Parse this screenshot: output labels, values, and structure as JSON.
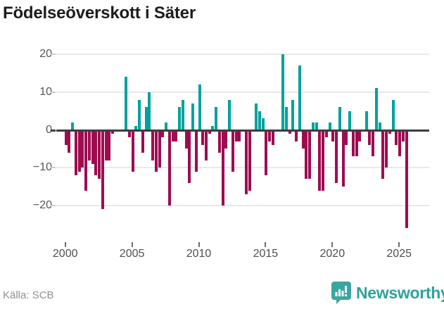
{
  "header": {
    "title": "Födelseöverskott i Säter"
  },
  "footer": {
    "source": "Källa: SCB",
    "brand": "Newsworthy"
  },
  "chart_data": {
    "type": "bar",
    "title": "Födelseöverskott i Säter",
    "source": "Källa: SCB",
    "frequency": "quarterly",
    "xlabel": "",
    "ylabel": "",
    "x_tick_labels": [
      2000,
      2005,
      2010,
      2015,
      2020,
      2025
    ],
    "y_ticks": [
      20,
      10,
      0,
      -10,
      -20
    ],
    "ylim": [
      -28,
      22
    ],
    "legend": "none",
    "grid": "horizontal",
    "series_by_year": {
      "2000": [
        -4,
        -6,
        2,
        -12
      ],
      "2001": [
        -11,
        -10,
        -16,
        -8
      ],
      "2002": [
        -9,
        -12,
        -13,
        -21
      ],
      "2003": [
        -8,
        -8,
        -1,
        0
      ],
      "2004": [
        0,
        0,
        14,
        -2
      ],
      "2005": [
        -11,
        1,
        8,
        -6
      ],
      "2006": [
        6,
        10,
        -8,
        -11
      ],
      "2007": [
        -10,
        -2,
        2,
        -20
      ],
      "2008": [
        -3,
        -3,
        6,
        8
      ],
      "2009": [
        -5,
        -14,
        7,
        -11
      ],
      "2010": [
        12,
        -4,
        -8,
        -1
      ],
      "2011": [
        1,
        6,
        -6,
        -20
      ],
      "2012": [
        -5,
        8,
        -11,
        -3
      ],
      "2013": [
        -3,
        0,
        -17,
        -16
      ],
      "2014": [
        0,
        7,
        5,
        3
      ],
      "2015": [
        -12,
        -3,
        -4,
        0
      ],
      "2016": [
        0,
        20,
        6,
        -1
      ],
      "2017": [
        8,
        -3,
        17,
        -5
      ],
      "2018": [
        -13,
        -13,
        2,
        2
      ],
      "2019": [
        -16,
        -16,
        -2,
        2
      ],
      "2020": [
        -3,
        -14,
        6,
        -15
      ],
      "2021": [
        -4,
        5,
        -7,
        -7
      ],
      "2022": [
        -3,
        0,
        5,
        -4
      ],
      "2023": [
        -7,
        11,
        2,
        -13
      ],
      "2024": [
        -10,
        -1,
        8,
        -4
      ],
      "2025": [
        -7,
        -3,
        -26
      ]
    },
    "colors": {
      "positive": "#00a29b",
      "negative": "#9e0c50"
    }
  }
}
